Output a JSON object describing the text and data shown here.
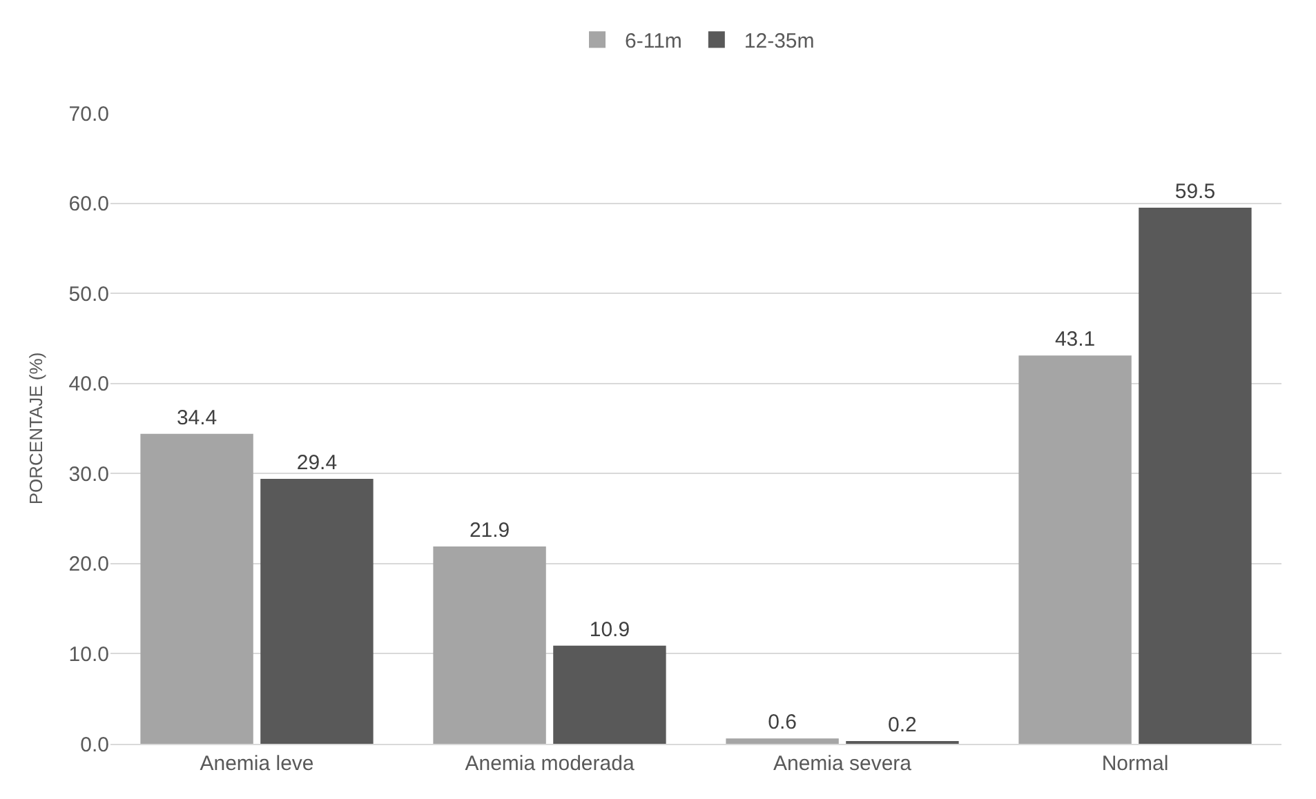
{
  "chart_data": {
    "type": "bar",
    "ylabel": "PORCENTAJE (%)",
    "categories": [
      "Anemia leve",
      "Anemia moderada",
      "Anemia severa",
      "Normal"
    ],
    "series": [
      {
        "name": "6-11m",
        "color": "#a5a5a5",
        "values": [
          34.4,
          21.9,
          0.6,
          43.1
        ]
      },
      {
        "name": "12-35m",
        "color": "#595959",
        "values": [
          29.4,
          10.9,
          0.2,
          59.5
        ]
      }
    ],
    "ylim": [
      0,
      70
    ],
    "yticks": [
      {
        "value": 0,
        "label": "0.0"
      },
      {
        "value": 10,
        "label": "10.0"
      },
      {
        "value": 20,
        "label": "20.0"
      },
      {
        "value": 30,
        "label": "30.0"
      },
      {
        "value": 40,
        "label": "40.0"
      },
      {
        "value": 50,
        "label": "50.0"
      },
      {
        "value": 60,
        "label": "60.0"
      },
      {
        "value": 70,
        "label": "70.0"
      }
    ],
    "grid": "y",
    "legend": "top",
    "data_labels": true
  }
}
